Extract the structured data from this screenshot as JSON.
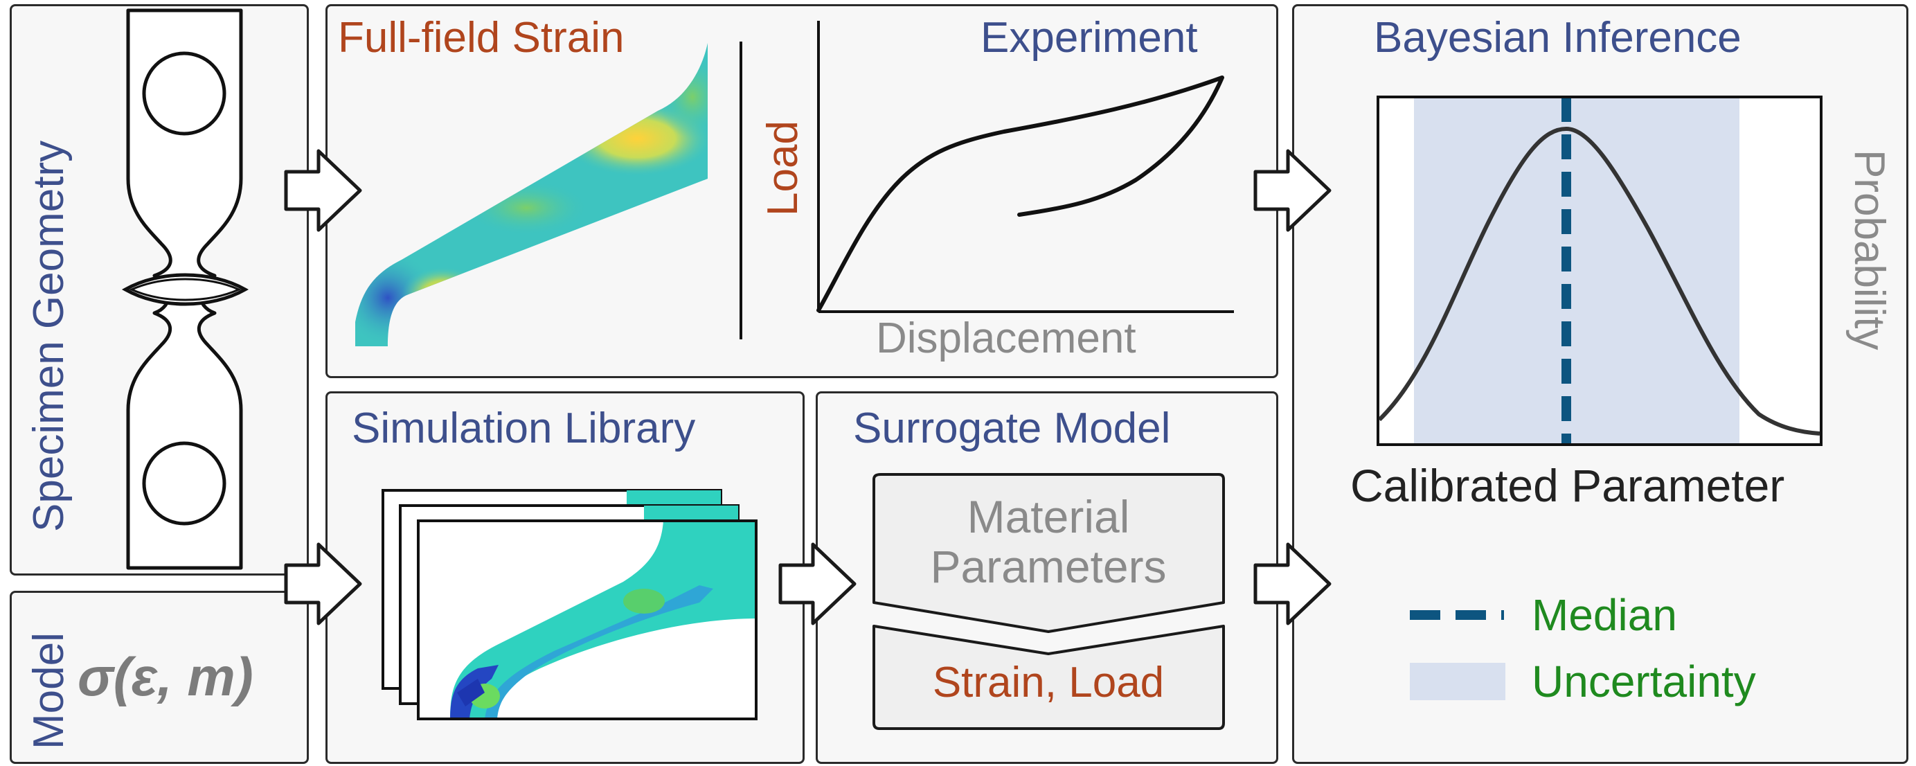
{
  "specimen": {
    "title": "Specimen Geometry"
  },
  "model": {
    "title": "Model",
    "equation": "σ(ε, m)"
  },
  "full_field": {
    "title": "Full-field Strain"
  },
  "experiment": {
    "title": "Experiment",
    "y_label": "Load",
    "x_label": "Displacement"
  },
  "simulation": {
    "title": "Simulation Library"
  },
  "surrogate": {
    "title": "Surrogate Model",
    "input_line1": "Material",
    "input_line2": "Parameters",
    "output": "Strain, Load"
  },
  "bayesian": {
    "title": "Bayesian Inference",
    "x_label": "Calibrated Parameter",
    "y_label": "Probability",
    "legend": [
      {
        "label": "Median",
        "style": "dashed-line",
        "color": "#0d5580"
      },
      {
        "label": "Uncertainty",
        "style": "shaded-band",
        "color": "#d8e0ef"
      }
    ]
  },
  "colors": {
    "title_blue": "#3d4f8c",
    "accent_rust": "#b0451d",
    "label_grey": "#8a8a8a",
    "legend_green": "#1f8a1f",
    "median": "#0d5580",
    "uncertainty": "#d8e0ef",
    "strain_base": "#3ec4c0"
  },
  "icons": [
    "flow-arrow-icon"
  ]
}
